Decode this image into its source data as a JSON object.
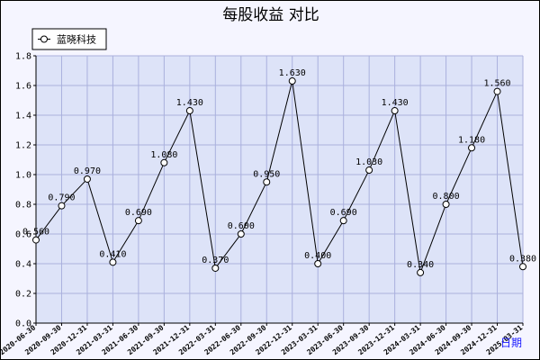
{
  "chart_data": {
    "type": "line",
    "title": "每股收益  对比",
    "xlabel": "日期",
    "ylabel": "",
    "ylim": [
      0,
      1.8
    ],
    "y_ticks": [
      "0.0",
      "0.2",
      "0.4",
      "0.6",
      "0.8",
      "1.0",
      "1.2",
      "1.4",
      "1.6",
      "1.8"
    ],
    "grid": true,
    "legend_position": "top-left",
    "categories": [
      "2020-06-30",
      "2020-09-30",
      "2020-12-31",
      "2021-03-31",
      "2021-06-30",
      "2021-09-30",
      "2021-12-31",
      "2022-03-31",
      "2022-06-30",
      "2022-09-30",
      "2022-12-31",
      "2023-03-31",
      "2023-06-30",
      "2023-09-30",
      "2023-12-31",
      "2024-03-31",
      "2024-06-30",
      "2024-09-30",
      "2024-12-31",
      "2025-03-31"
    ],
    "series": [
      {
        "name": "蓝晓科技",
        "values": [
          0.56,
          0.79,
          0.97,
          0.41,
          0.69,
          1.08,
          1.43,
          0.37,
          0.6,
          0.95,
          1.63,
          0.4,
          0.69,
          1.03,
          1.43,
          0.34,
          0.8,
          1.18,
          1.56,
          0.38
        ],
        "labels": [
          "0.560",
          "0.790",
          "0.970",
          "0.410",
          "0.690",
          "1.080",
          "1.430",
          "0.370",
          "0.600",
          "0.950",
          "1.630",
          "0.400",
          "0.690",
          "1.030",
          "1.430",
          "0.340",
          "0.800",
          "1.180",
          "1.560",
          "0.380"
        ]
      }
    ],
    "colors": {
      "plot_bg": "#dde3f8",
      "grid": "#aab0dd",
      "line": "#000000",
      "marker_fill": "#ffffff",
      "axis_unit": "#1a1aff"
    }
  }
}
